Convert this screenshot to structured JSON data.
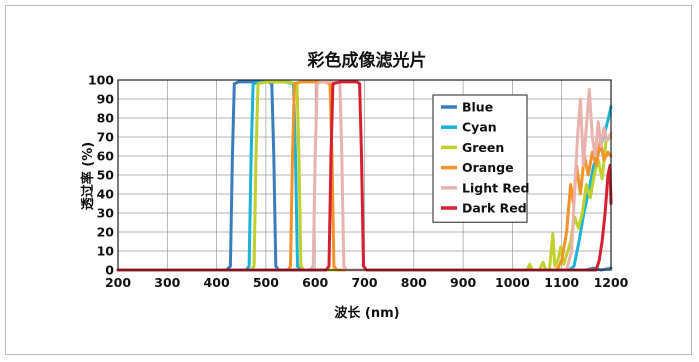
{
  "chart_data": {
    "type": "line",
    "title": "彩色成像滤光片",
    "xlabel": "波长 (nm)",
    "ylabel": "透过率 (%)",
    "xlim": [
      200,
      1200
    ],
    "ylim": [
      0,
      100
    ],
    "xticks": [
      200,
      300,
      400,
      500,
      600,
      700,
      800,
      900,
      1000,
      1100,
      1200
    ],
    "yticks": [
      0,
      10,
      20,
      30,
      40,
      50,
      60,
      70,
      80,
      90,
      100
    ],
    "grid": true,
    "legend_position": "top-right",
    "series": [
      {
        "name": "Blue",
        "color": "#3a7dbf",
        "points": [
          [
            200,
            0
          ],
          [
            420,
            0
          ],
          [
            428,
            2
          ],
          [
            432,
            60
          ],
          [
            436,
            98
          ],
          [
            445,
            99
          ],
          [
            480,
            99
          ],
          [
            505,
            99
          ],
          [
            512,
            98
          ],
          [
            516,
            60
          ],
          [
            520,
            2
          ],
          [
            526,
            0
          ],
          [
            1150,
            0
          ],
          [
            1165,
            1
          ],
          [
            1180,
            0
          ],
          [
            1200,
            1
          ]
        ]
      },
      {
        "name": "Cyan",
        "color": "#19b2d8",
        "points": [
          [
            200,
            0
          ],
          [
            460,
            0
          ],
          [
            466,
            2
          ],
          [
            470,
            60
          ],
          [
            474,
            98
          ],
          [
            490,
            99
          ],
          [
            540,
            99
          ],
          [
            556,
            98
          ],
          [
            560,
            60
          ],
          [
            564,
            2
          ],
          [
            570,
            0
          ],
          [
            1115,
            0
          ],
          [
            1125,
            2
          ],
          [
            1135,
            15
          ],
          [
            1145,
            30
          ],
          [
            1155,
            42
          ],
          [
            1165,
            55
          ],
          [
            1175,
            62
          ],
          [
            1185,
            70
          ],
          [
            1195,
            80
          ],
          [
            1200,
            86
          ]
        ]
      },
      {
        "name": "Green",
        "color": "#bfd12a",
        "points": [
          [
            200,
            0
          ],
          [
            470,
            0
          ],
          [
            476,
            2
          ],
          [
            480,
            60
          ],
          [
            484,
            98
          ],
          [
            500,
            99
          ],
          [
            545,
            99
          ],
          [
            563,
            98
          ],
          [
            567,
            60
          ],
          [
            571,
            2
          ],
          [
            577,
            0
          ],
          [
            1030,
            0
          ],
          [
            1035,
            3
          ],
          [
            1040,
            0
          ],
          [
            1055,
            0
          ],
          [
            1062,
            4
          ],
          [
            1068,
            0
          ],
          [
            1075,
            0
          ],
          [
            1082,
            19
          ],
          [
            1086,
            2
          ],
          [
            1092,
            5
          ],
          [
            1098,
            12
          ],
          [
            1104,
            3
          ],
          [
            1110,
            8
          ],
          [
            1118,
            15
          ],
          [
            1126,
            28
          ],
          [
            1134,
            22
          ],
          [
            1142,
            30
          ],
          [
            1150,
            45
          ],
          [
            1158,
            38
          ],
          [
            1166,
            50
          ],
          [
            1174,
            58
          ],
          [
            1182,
            48
          ],
          [
            1190,
            68
          ],
          [
            1200,
            70
          ]
        ]
      },
      {
        "name": "Orange",
        "color": "#f39228",
        "points": [
          [
            200,
            0
          ],
          [
            545,
            0
          ],
          [
            550,
            2
          ],
          [
            554,
            60
          ],
          [
            558,
            98
          ],
          [
            570,
            99
          ],
          [
            620,
            99
          ],
          [
            630,
            98
          ],
          [
            634,
            60
          ],
          [
            638,
            2
          ],
          [
            644,
            0
          ],
          [
            1090,
            0
          ],
          [
            1100,
            5
          ],
          [
            1110,
            20
          ],
          [
            1118,
            45
          ],
          [
            1124,
            35
          ],
          [
            1130,
            55
          ],
          [
            1138,
            40
          ],
          [
            1146,
            60
          ],
          [
            1154,
            50
          ],
          [
            1162,
            62
          ],
          [
            1170,
            55
          ],
          [
            1178,
            68
          ],
          [
            1186,
            58
          ],
          [
            1194,
            62
          ],
          [
            1200,
            60
          ]
        ]
      },
      {
        "name": "Light Red",
        "color": "#e8b3ad",
        "points": [
          [
            200,
            0
          ],
          [
            590,
            0
          ],
          [
            596,
            2
          ],
          [
            600,
            60
          ],
          [
            604,
            98
          ],
          [
            612,
            99
          ],
          [
            645,
            99
          ],
          [
            650,
            98
          ],
          [
            654,
            60
          ],
          [
            658,
            2
          ],
          [
            664,
            0
          ],
          [
            1110,
            0
          ],
          [
            1120,
            10
          ],
          [
            1126,
            40
          ],
          [
            1132,
            70
          ],
          [
            1138,
            90
          ],
          [
            1144,
            55
          ],
          [
            1150,
            75
          ],
          [
            1156,
            95
          ],
          [
            1162,
            70
          ],
          [
            1168,
            60
          ],
          [
            1174,
            78
          ],
          [
            1180,
            65
          ],
          [
            1186,
            75
          ],
          [
            1192,
            68
          ],
          [
            1200,
            72
          ]
        ]
      },
      {
        "name": "Dark Red",
        "color": "#d42030",
        "points": [
          [
            200,
            0
          ],
          [
            622,
            0
          ],
          [
            628,
            2
          ],
          [
            632,
            60
          ],
          [
            636,
            98
          ],
          [
            650,
            99
          ],
          [
            685,
            99
          ],
          [
            690,
            98
          ],
          [
            694,
            60
          ],
          [
            698,
            2
          ],
          [
            704,
            0
          ],
          [
            1170,
            0
          ],
          [
            1176,
            5
          ],
          [
            1182,
            15
          ],
          [
            1188,
            30
          ],
          [
            1194,
            50
          ],
          [
            1198,
            55
          ],
          [
            1200,
            35
          ]
        ]
      }
    ]
  }
}
